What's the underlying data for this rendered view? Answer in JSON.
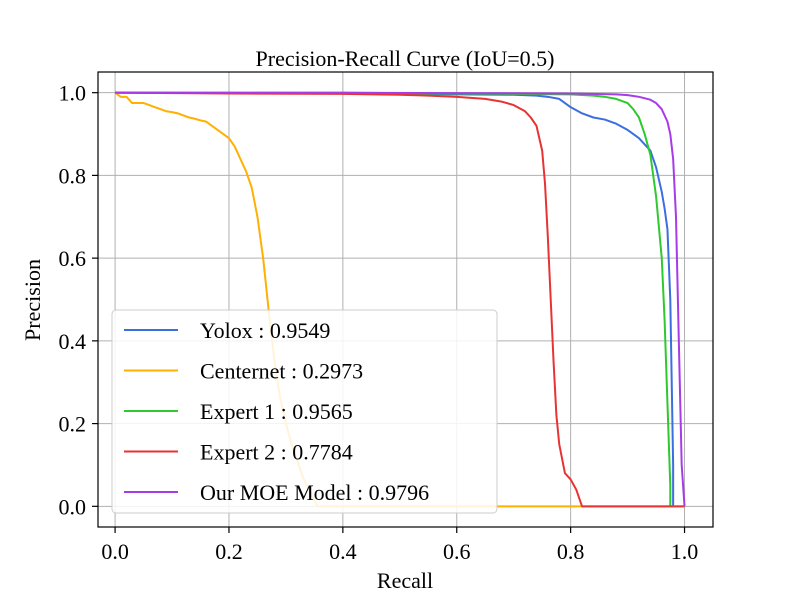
{
  "chart_data": {
    "type": "line",
    "title": "Precision-Recall Curve (IoU=0.5)",
    "xlabel": "Recall",
    "ylabel": "Precision",
    "xlim": [
      -0.03,
      1.05
    ],
    "ylim": [
      -0.05,
      1.05
    ],
    "xticks": [
      0.0,
      0.2,
      0.4,
      0.6,
      0.8,
      1.0
    ],
    "xtick_labels": [
      "0.0",
      "0.2",
      "0.4",
      "0.6",
      "0.8",
      "1.0"
    ],
    "yticks": [
      0.0,
      0.2,
      0.4,
      0.6,
      0.8,
      1.0
    ],
    "ytick_labels": [
      "0.0",
      "0.2",
      "0.4",
      "0.6",
      "0.8",
      "1.0"
    ],
    "grid": true,
    "legend_position": "lower-left",
    "series": [
      {
        "name": "Yolox : 0.9549",
        "color": "#3a6fe0",
        "x": [
          0.0,
          0.2,
          0.4,
          0.6,
          0.7,
          0.74,
          0.76,
          0.78,
          0.8,
          0.82,
          0.84,
          0.86,
          0.88,
          0.9,
          0.92,
          0.94,
          0.95,
          0.96,
          0.965,
          0.97,
          0.975,
          0.98,
          0.98
        ],
        "y": [
          1.0,
          0.999,
          0.998,
          0.996,
          0.995,
          0.993,
          0.99,
          0.985,
          0.965,
          0.95,
          0.94,
          0.935,
          0.925,
          0.91,
          0.89,
          0.86,
          0.82,
          0.76,
          0.72,
          0.67,
          0.5,
          0.1,
          0.0
        ]
      },
      {
        "name": "Centernet : 0.2973",
        "color": "#ffb000",
        "x": [
          0.0,
          0.01,
          0.02,
          0.03,
          0.04,
          0.05,
          0.06,
          0.07,
          0.08,
          0.09,
          0.1,
          0.11,
          0.12,
          0.13,
          0.14,
          0.15,
          0.16,
          0.17,
          0.18,
          0.19,
          0.2,
          0.21,
          0.22,
          0.23,
          0.24,
          0.25,
          0.26,
          0.27,
          0.28,
          0.29,
          0.3,
          0.31,
          0.32,
          0.33,
          0.34,
          0.35,
          0.355,
          0.4,
          0.6,
          0.82,
          1.0
        ],
        "y": [
          1.0,
          0.99,
          0.99,
          0.975,
          0.975,
          0.975,
          0.97,
          0.965,
          0.96,
          0.955,
          0.953,
          0.95,
          0.945,
          0.94,
          0.937,
          0.933,
          0.93,
          0.92,
          0.91,
          0.9,
          0.89,
          0.87,
          0.84,
          0.81,
          0.77,
          0.7,
          0.6,
          0.47,
          0.35,
          0.26,
          0.2,
          0.15,
          0.11,
          0.07,
          0.04,
          0.015,
          0.0,
          0.0,
          0.0,
          0.0,
          0.0
        ]
      },
      {
        "name": "Expert 1 : 0.9565",
        "color": "#2ec92e",
        "x": [
          0.0,
          0.4,
          0.6,
          0.8,
          0.84,
          0.86,
          0.88,
          0.9,
          0.91,
          0.92,
          0.93,
          0.94,
          0.95,
          0.96,
          0.965,
          0.97,
          0.975,
          0.975
        ],
        "y": [
          1.0,
          0.999,
          0.998,
          0.996,
          0.993,
          0.99,
          0.985,
          0.975,
          0.96,
          0.94,
          0.9,
          0.85,
          0.75,
          0.6,
          0.45,
          0.25,
          0.05,
          0.0
        ]
      },
      {
        "name": "Expert 2 : 0.7784",
        "color": "#e83333",
        "x": [
          0.0,
          0.2,
          0.4,
          0.5,
          0.55,
          0.6,
          0.65,
          0.68,
          0.7,
          0.72,
          0.73,
          0.74,
          0.75,
          0.755,
          0.76,
          0.765,
          0.77,
          0.775,
          0.78,
          0.79,
          0.8,
          0.81,
          0.82,
          0.85,
          1.0
        ],
        "y": [
          1.0,
          0.998,
          0.997,
          0.995,
          0.993,
          0.99,
          0.985,
          0.978,
          0.97,
          0.955,
          0.94,
          0.92,
          0.86,
          0.78,
          0.65,
          0.5,
          0.35,
          0.22,
          0.15,
          0.08,
          0.065,
          0.04,
          0.0,
          0.0,
          0.0
        ]
      },
      {
        "name": "Our MOE Model : 0.9796",
        "color": "#a83be8",
        "x": [
          0.0,
          0.4,
          0.6,
          0.8,
          0.88,
          0.9,
          0.92,
          0.94,
          0.95,
          0.96,
          0.97,
          0.975,
          0.98,
          0.985,
          0.99,
          0.995,
          1.0
        ],
        "y": [
          1.0,
          1.0,
          0.999,
          0.998,
          0.996,
          0.994,
          0.99,
          0.983,
          0.975,
          0.96,
          0.93,
          0.9,
          0.84,
          0.7,
          0.4,
          0.1,
          0.0
        ]
      }
    ]
  }
}
